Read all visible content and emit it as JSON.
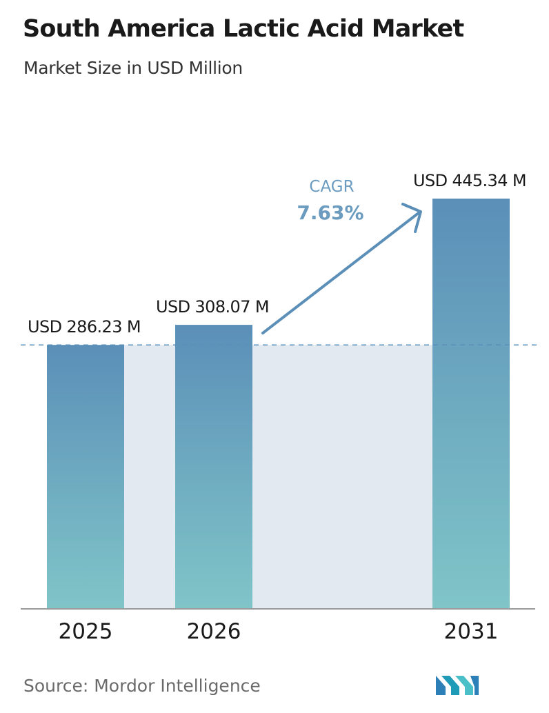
{
  "header": {
    "title": "South America Lactic Acid Market",
    "subtitle": "Market Size in USD Million"
  },
  "chart_data": {
    "type": "bar",
    "title": "South America Lactic Acid Market",
    "subtitle": "Market Size in USD Million",
    "categories": [
      "2025",
      "2026",
      "2031"
    ],
    "values": [
      286.23,
      308.07,
      445.34
    ],
    "value_labels": [
      "USD 286.23 M",
      "USD 308.07 M",
      "USD 445.34 M"
    ],
    "unit": "USD Million",
    "ylim": [
      0,
      445.34
    ],
    "grid": false,
    "reference_line": {
      "value": 286.23,
      "style": "dashed"
    },
    "annotation": {
      "label": "CAGR",
      "value": "7.63%"
    }
  },
  "colors": {
    "bar_top": "#5b8fb8",
    "bar_bottom": "#80c5c8",
    "band": "#e2e9f1",
    "arrow": "#5b8fb8",
    "cagr_text": "#6b9cc0"
  },
  "footer": {
    "source": "Source:  Mordor Intelligence",
    "logo_icon": "mordor-intelligence-logo-icon"
  }
}
